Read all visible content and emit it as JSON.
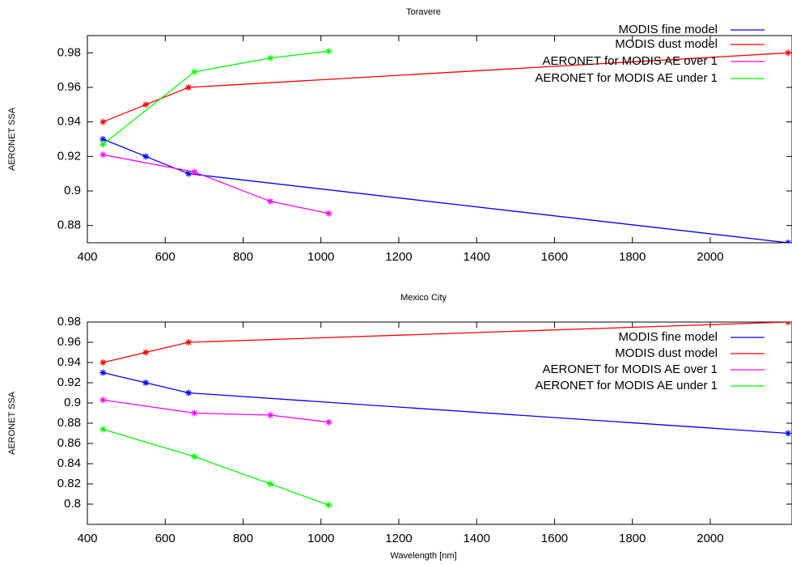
{
  "chart_data": [
    {
      "type": "line",
      "title": "Toravere",
      "y_label": "AERONET SSA",
      "xlim": [
        400,
        2210
      ],
      "xticks": [
        400,
        600,
        800,
        1000,
        1200,
        1400,
        1600,
        1800,
        2000
      ],
      "ylim": [
        0.87,
        0.99
      ],
      "yticks": [
        0.88,
        0.9,
        0.92,
        0.94,
        0.96,
        0.98
      ],
      "series": [
        {
          "name": "MODIS fine model",
          "color": "#0000ff",
          "x": [
            440,
            550,
            660,
            2200
          ],
          "values": [
            0.93,
            0.92,
            0.91,
            0.87
          ]
        },
        {
          "name": "MODIS dust model",
          "color": "#ff0000",
          "x": [
            440,
            550,
            660,
            2200
          ],
          "values": [
            0.94,
            0.95,
            0.96,
            0.98
          ]
        },
        {
          "name": "AERONET for MODIS AE over 1",
          "color": "#ff00ff",
          "x": [
            440,
            675,
            870,
            1020
          ],
          "values": [
            0.921,
            0.911,
            0.894,
            0.887
          ]
        },
        {
          "name": "AERONET for MODIS AE under 1",
          "color": "#00ff00",
          "x": [
            440,
            675,
            870,
            1020
          ],
          "values": [
            0.927,
            0.969,
            0.977,
            0.981
          ]
        }
      ]
    },
    {
      "type": "line",
      "title": "Mexico City",
      "y_label": "AERONET SSA",
      "x_label": "Wavelength [nm]",
      "xlim": [
        400,
        2210
      ],
      "xticks": [
        400,
        600,
        800,
        1000,
        1200,
        1400,
        1600,
        1800,
        2000
      ],
      "ylim": [
        0.78,
        0.98
      ],
      "yticks": [
        0.8,
        0.82,
        0.84,
        0.86,
        0.88,
        0.9,
        0.92,
        0.94,
        0.96,
        0.98
      ],
      "series": [
        {
          "name": "MODIS fine model",
          "color": "#0000ff",
          "x": [
            440,
            550,
            660,
            2200
          ],
          "values": [
            0.93,
            0.92,
            0.91,
            0.87
          ]
        },
        {
          "name": "MODIS dust model",
          "color": "#ff0000",
          "x": [
            440,
            550,
            660,
            2200
          ],
          "values": [
            0.94,
            0.95,
            0.96,
            0.98
          ]
        },
        {
          "name": "AERONET for MODIS AE over 1",
          "color": "#ff00ff",
          "x": [
            440,
            675,
            870,
            1020
          ],
          "values": [
            0.903,
            0.89,
            0.888,
            0.881
          ]
        },
        {
          "name": "AERONET for MODIS AE under 1",
          "color": "#00ff00",
          "x": [
            440,
            675,
            870,
            1020
          ],
          "values": [
            0.874,
            0.847,
            0.82,
            0.799
          ]
        }
      ]
    }
  ]
}
